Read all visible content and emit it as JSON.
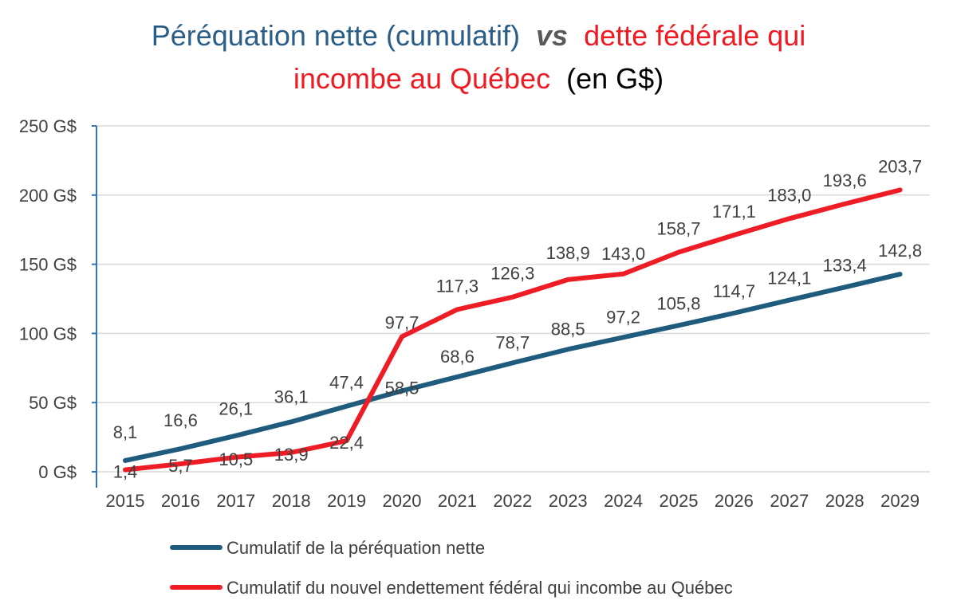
{
  "colors": {
    "blue": "#2a5e86",
    "red": "#ed1c24",
    "black": "#000000",
    "grey": "#595959",
    "axis": "#2e75b6",
    "grid": "#d9d9d9",
    "series_perequation": "#1e5b7d",
    "series_dette": "#ee1c25"
  },
  "chart_data": {
    "type": "line",
    "title": {
      "part1": "Péréquation nette (cumulatif)",
      "vs": "vs",
      "part2": "dette fédérale qui",
      "part3": "incombe au Québec",
      "part4": "(en G$)"
    },
    "categories": [
      "2015",
      "2016",
      "2017",
      "2018",
      "2019",
      "2020",
      "2021",
      "2022",
      "2023",
      "2024",
      "2025",
      "2026",
      "2027",
      "2028",
      "2029"
    ],
    "y_ticks": [
      "0 G$",
      "50 G$",
      "100 G$",
      "150 G$",
      "200 G$",
      "250 G$"
    ],
    "ylim": [
      0,
      250
    ],
    "grid": true,
    "legend_position": "bottom",
    "series": [
      {
        "name": "Cumulatif de la péréquation nette",
        "color": "#1e5b7d",
        "values": [
          8.1,
          16.6,
          26.1,
          36.1,
          47.4,
          58.5,
          68.6,
          78.7,
          88.5,
          97.2,
          105.8,
          114.7,
          124.1,
          133.4,
          142.8
        ],
        "labels": [
          "8,1",
          "16,6",
          "26,1",
          "36,1",
          "47,4",
          "58,5",
          "68,6",
          "78,7",
          "88,5",
          "97,2",
          "105,8",
          "114,7",
          "124,1",
          "133,4",
          "142,8"
        ]
      },
      {
        "name": "Cumulatif du nouvel endettement fédéral qui incombe au Québec",
        "color": "#ee1c25",
        "values": [
          1.4,
          5.7,
          10.5,
          13.9,
          22.4,
          97.7,
          117.3,
          126.3,
          138.9,
          143.0,
          158.7,
          171.1,
          183.0,
          193.6,
          203.7
        ],
        "labels": [
          "1,4",
          "5,7",
          "10,5",
          "13,9",
          "22,4",
          "97,7",
          "117,3",
          "126,3",
          "138,9",
          "143,0",
          "158,7",
          "171,1",
          "183,0",
          "193,6",
          "203,7"
        ]
      }
    ]
  }
}
